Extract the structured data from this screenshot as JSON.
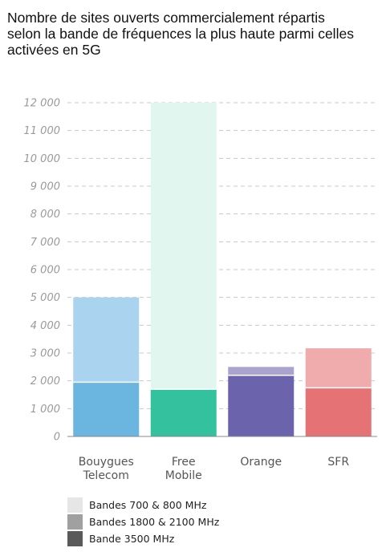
{
  "chart_data": {
    "type": "bar",
    "stacked": true,
    "title": "Nombre de sites ouverts commercialement répartis selon la bande de fréquences la plus haute parmi celles activées en 5G",
    "categories": [
      [
        "Bouygues",
        "Telecom"
      ],
      [
        "Free",
        "Mobile"
      ],
      [
        "Orange"
      ],
      [
        "SFR"
      ]
    ],
    "ylim": [
      0,
      12000
    ],
    "yticks": [
      {
        "value": 0,
        "label": "0"
      },
      {
        "value": 1000,
        "label": "1 000"
      },
      {
        "value": 2000,
        "label": "2 000"
      },
      {
        "value": 3000,
        "label": "3 000"
      },
      {
        "value": 4000,
        "label": "4 000"
      },
      {
        "value": 5000,
        "label": "5 000"
      },
      {
        "value": 6000,
        "label": "6 000"
      },
      {
        "value": 7000,
        "label": "7 000"
      },
      {
        "value": 8000,
        "label": "8 000"
      },
      {
        "value": 9000,
        "label": "9 000"
      },
      {
        "value": 10000,
        "label": "10 000"
      },
      {
        "value": 11000,
        "label": "11 000"
      },
      {
        "value": 12000,
        "label": "12 000"
      }
    ],
    "grid": true,
    "legend_position": "bottom-left",
    "series": [
      {
        "name": "Bande 3500 MHz",
        "values": [
          1950,
          1700,
          2200,
          1750
        ]
      },
      {
        "name": "Bandes 1800 & 2100 MHz",
        "values": [
          0,
          0,
          300,
          0
        ]
      },
      {
        "name": "Bandes 700 & 800 MHz",
        "values": [
          3050,
          10300,
          0,
          1420
        ]
      }
    ],
    "bar_colors": [
      [
        "#6ab6e1",
        "#a9d3ee",
        "#a9d3ee"
      ],
      [
        "#34c19d",
        "#e2f6f0",
        "#e2f6f0"
      ],
      [
        "#6b63ab",
        "#a8a4cf",
        "#a8a4cf"
      ],
      [
        "#e57274",
        "#f0abad",
        "#f0abad"
      ]
    ],
    "legend": [
      {
        "label": "Bandes 700 & 800 MHz",
        "color": "#e6e6e6"
      },
      {
        "label": "Bandes 1800 & 2100 MHz",
        "color": "#a0a0a0"
      },
      {
        "label": "Bande 3500 MHz",
        "color": "#5a5a5a"
      }
    ]
  }
}
